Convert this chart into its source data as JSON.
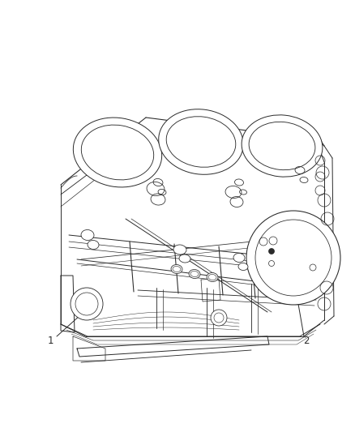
{
  "background_color": "#ffffff",
  "line_color": "#2a2a2a",
  "line_width": 0.7,
  "figure_width": 4.38,
  "figure_height": 5.33,
  "dpi": 100,
  "label_1_text": "1",
  "label_2_text": "2",
  "label_fontsize": 8.5
}
